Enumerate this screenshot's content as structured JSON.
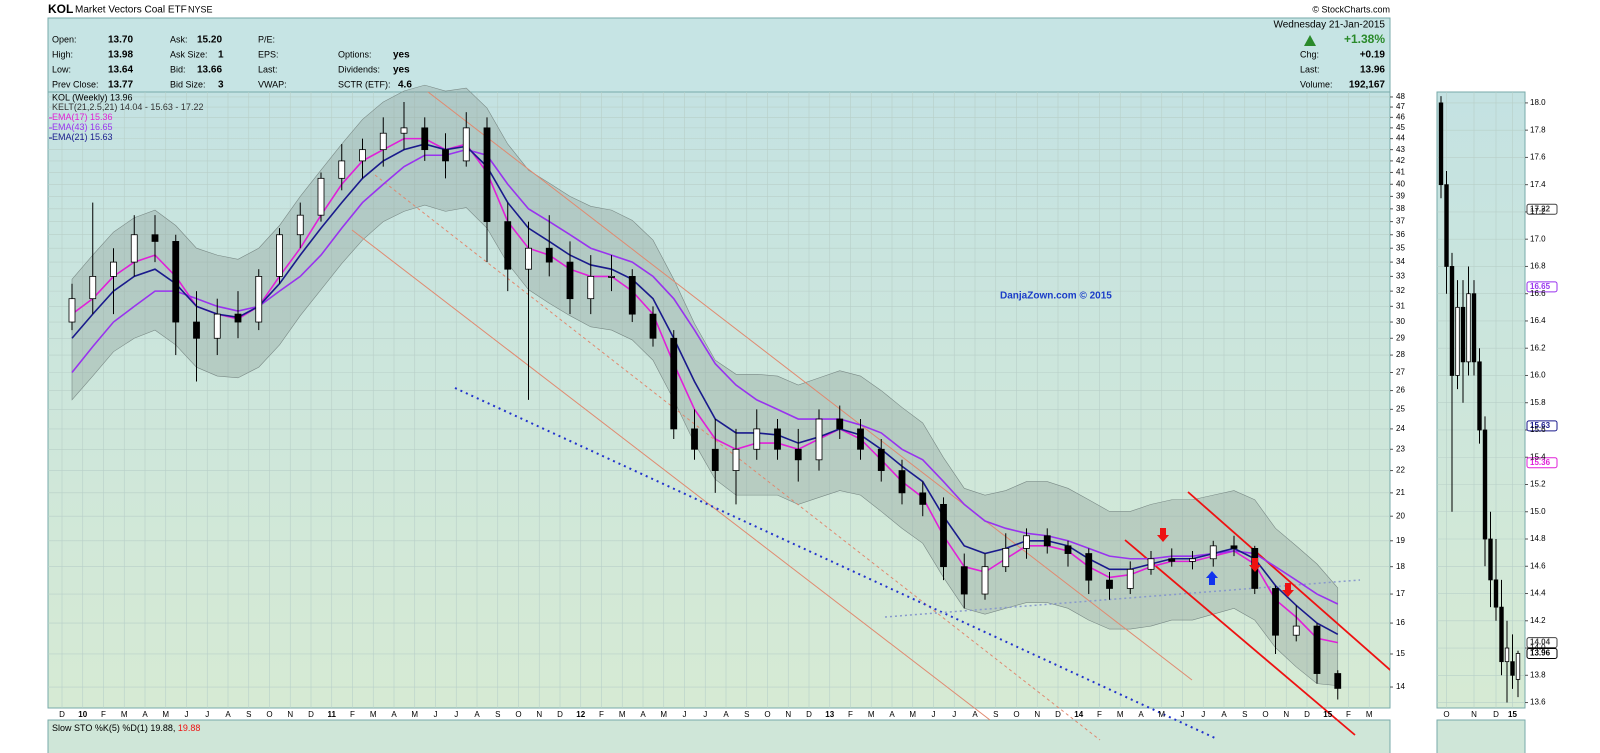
{
  "header": {
    "symbol": "KOL",
    "name": "Market Vectors Coal ETF",
    "exchange": "NYSE",
    "source": "© StockCharts.com",
    "date": "Wednesday  21-Jan-2015",
    "change_pct": "+1.38%"
  },
  "quote": {
    "fields": [
      {
        "label": "Open:",
        "value": "13.70"
      },
      {
        "label": "High:",
        "value": "13.98"
      },
      {
        "label": "Low:",
        "value": "13.64"
      },
      {
        "label": "Prev Close:",
        "value": "13.77"
      },
      {
        "label": "Ask:",
        "value": "15.20"
      },
      {
        "label": "Ask Size:",
        "value": "1"
      },
      {
        "label": "Bid:",
        "value": "13.66"
      },
      {
        "label": "Bid Size:",
        "value": "3"
      },
      {
        "label": "P/E:"
      },
      {
        "label": "EPS:"
      },
      {
        "label": "Last:"
      },
      {
        "label": "VWAP:"
      },
      {
        "label": "Options:",
        "value": "yes"
      },
      {
        "label": "Dividends:",
        "value": "yes"
      },
      {
        "label": "SCTR (ETF):",
        "value": "4.6"
      },
      {
        "label": "Chg:",
        "value": "+0.19"
      },
      {
        "label": "Last:",
        "value": "13.96"
      },
      {
        "label": "Volume:",
        "value": "192,167"
      }
    ]
  },
  "chart_data": [
    {
      "type": "candlestick",
      "price_label": "KOL (Weekly) 13.96",
      "watermark": "DanjaZown.com © 2015",
      "log_scale": true,
      "grid": true,
      "categories": [
        "D",
        "10",
        "F",
        "M",
        "A",
        "M",
        "J",
        "J",
        "A",
        "S",
        "O",
        "N",
        "D",
        "11",
        "F",
        "M",
        "A",
        "M",
        "J",
        "J",
        "A",
        "S",
        "O",
        "N",
        "D",
        "12",
        "F",
        "M",
        "A",
        "M",
        "J",
        "J",
        "A",
        "S",
        "O",
        "N",
        "D",
        "13",
        "F",
        "M",
        "A",
        "M",
        "J",
        "J",
        "A",
        "S",
        "O",
        "N",
        "D",
        "14",
        "F",
        "M",
        "A",
        "M",
        "J",
        "J",
        "A",
        "S",
        "O",
        "N",
        "D",
        "15",
        "F",
        "M"
      ],
      "open": [
        30,
        31.5,
        33,
        34,
        36,
        35.5,
        30,
        29,
        30.5,
        30,
        33,
        36,
        37.5,
        40.5,
        42,
        43,
        44.5,
        45,
        43,
        42,
        45,
        37,
        33.5,
        35,
        34,
        31.5,
        33,
        33,
        30.5,
        29,
        24,
        23,
        22,
        23,
        24,
        23,
        22.5,
        24.5,
        24,
        23,
        22,
        21,
        20.5,
        18,
        17,
        18,
        18.7,
        19.2,
        18.8,
        18.5,
        17.5,
        17.2,
        17.9,
        18.3,
        18.2,
        18.3,
        18.8,
        18.7,
        17.2,
        15.6,
        15.9,
        14.4,
        null,
        null
      ],
      "high": [
        32.5,
        38.5,
        35,
        37.5,
        37.5,
        36,
        32,
        31.5,
        32,
        33.5,
        36.5,
        38.5,
        41,
        43.5,
        44,
        46,
        47.5,
        46,
        44.5,
        46.5,
        46,
        38.5,
        37,
        37.5,
        35.5,
        34.5,
        34.5,
        33.5,
        31,
        29.5,
        25,
        24.5,
        24,
        25,
        24.5,
        24,
        25,
        25.2,
        24.5,
        23.5,
        22.5,
        21.5,
        20.8,
        18.5,
        18.5,
        19.3,
        19.5,
        19.5,
        19,
        18.7,
        17.8,
        18.2,
        18.6,
        18.7,
        18.6,
        19,
        19.2,
        18.8,
        17.3,
        16.6,
        16,
        14.5,
        null,
        null
      ],
      "low": [
        29.5,
        30.5,
        30.5,
        33,
        34,
        28,
        26.5,
        28,
        29,
        29.5,
        32.5,
        35,
        37,
        39.5,
        40.5,
        41.5,
        43,
        42,
        40.5,
        41.5,
        34,
        32,
        25.5,
        33,
        30.5,
        30.5,
        32,
        30,
        28.5,
        23.5,
        22.5,
        21,
        20.5,
        22.5,
        22.5,
        21.5,
        22,
        23.5,
        22.5,
        21.5,
        20.5,
        20,
        17.5,
        16.5,
        16.8,
        17.8,
        18.3,
        18.5,
        18,
        17,
        16.8,
        17,
        17.7,
        18,
        17.9,
        18,
        18.4,
        17,
        15,
        15.4,
        14.1,
        13.64,
        null,
        null
      ],
      "close": [
        31.5,
        33,
        34,
        36,
        35.5,
        30,
        29,
        30.5,
        30,
        33,
        36,
        37.5,
        40.5,
        42,
        43,
        44.5,
        45,
        43,
        42,
        45,
        37,
        33.5,
        35,
        34,
        31.5,
        33,
        33,
        30.5,
        29,
        24,
        23,
        22,
        23,
        24,
        23,
        22.5,
        24.5,
        24,
        23,
        22,
        21,
        20.5,
        18,
        17,
        18,
        18.7,
        19.2,
        18.8,
        18.5,
        17.5,
        17.2,
        17.9,
        18.3,
        18.2,
        18.3,
        18.8,
        18.7,
        17.2,
        15.6,
        15.9,
        14.4,
        13.96,
        null,
        null
      ],
      "band": {
        "name": "KELT(21,2.5,21)",
        "legend_values": "14.04 - 15.63 - 17.22",
        "upper": [
          32.8,
          34.5,
          36.2,
          37.3,
          37.9,
          36.7,
          35,
          34.5,
          34.2,
          35,
          36.7,
          39,
          41.2,
          43.5,
          45.8,
          47.5,
          48.6,
          49.2,
          48.6,
          48.9,
          46.9,
          43.5,
          41.2,
          40.1,
          39,
          38.2,
          37.9,
          37.1,
          35.6,
          32.8,
          29.9,
          27.7,
          26.9,
          26.9,
          26.8,
          26.3,
          26.7,
          27.1,
          26.8,
          26,
          25.1,
          24.3,
          22.6,
          21.2,
          20.9,
          21.1,
          21.5,
          21.5,
          21.2,
          20.7,
          20.2,
          20.2,
          20.5,
          20.7,
          20.7,
          20.9,
          21.1,
          20.7,
          19.5,
          18.8,
          18.1,
          17.22,
          null,
          null
        ],
        "lower": [
          25.5,
          26.8,
          28.2,
          29,
          29.5,
          28.6,
          27.3,
          26.8,
          26.7,
          27.3,
          28.6,
          30.4,
          32.1,
          33.9,
          35.6,
          37,
          37.8,
          38.3,
          37.8,
          38.1,
          36.5,
          33.9,
          32.1,
          31.2,
          30.4,
          29.7,
          29.5,
          28.9,
          27.7,
          25.5,
          23.3,
          21.6,
          20.9,
          20.9,
          20.9,
          20.5,
          20.8,
          21.1,
          20.9,
          20.2,
          19.5,
          18.9,
          17.6,
          16.5,
          16.3,
          16.5,
          16.7,
          16.7,
          16.5,
          16.1,
          15.8,
          15.8,
          15.9,
          16.1,
          16.1,
          16.3,
          16.5,
          16.1,
          15.2,
          14.6,
          14.1,
          14.04,
          null,
          null
        ]
      },
      "series": [
        {
          "name": "EMA(17)",
          "last": 15.36,
          "color": "#e020d8",
          "values": [
            30.5,
            31.5,
            33,
            34,
            34.5,
            33,
            31,
            30.5,
            30.2,
            31,
            33,
            35,
            37.5,
            40,
            42,
            43,
            44,
            44,
            43,
            43.5,
            41,
            37,
            35,
            34.5,
            33.5,
            33,
            33,
            32,
            30.5,
            27.5,
            25,
            23.5,
            23,
            23.3,
            23.3,
            23,
            23.5,
            24,
            23.5,
            22.5,
            21.5,
            20.8,
            19.2,
            18,
            17.8,
            18.3,
            18.8,
            18.8,
            18.6,
            18,
            17.6,
            17.7,
            18,
            18.2,
            18.2,
            18.4,
            18.6,
            18.1,
            16.8,
            16.2,
            15.5,
            15.36,
            null,
            null
          ]
        },
        {
          "name": "EMA(43)",
          "last": 16.65,
          "color": "#9933ee",
          "values": [
            27,
            28.5,
            30,
            31,
            32,
            32,
            31.5,
            31,
            30.7,
            31,
            32,
            33,
            34.5,
            36.5,
            38.5,
            40,
            41.5,
            42.5,
            42.5,
            43,
            42.5,
            40,
            38,
            37,
            36,
            35,
            34.5,
            34,
            33,
            31.5,
            29.5,
            27.5,
            26.3,
            25.5,
            25,
            24.5,
            24.5,
            24.5,
            24.2,
            23.8,
            23,
            22.5,
            21.5,
            20.5,
            19.8,
            19.5,
            19.3,
            19.2,
            19,
            18.7,
            18.4,
            18.3,
            18.3,
            18.4,
            18.4,
            18.5,
            18.6,
            18.5,
            18,
            17.5,
            17,
            16.65,
            null,
            null
          ]
        },
        {
          "name": "EMA(21)",
          "last": 15.63,
          "color": "#1a1a8c",
          "values": [
            29,
            30.5,
            32,
            33,
            33.5,
            32.5,
            31,
            30.5,
            30.3,
            31,
            32.5,
            34.5,
            36.5,
            38.5,
            40.5,
            42,
            43,
            43.5,
            43,
            43.3,
            41.5,
            38.5,
            36.5,
            35.5,
            34.5,
            33.8,
            33.5,
            32.8,
            31.5,
            29,
            26.5,
            24.5,
            23.8,
            23.8,
            23.7,
            23.3,
            23.6,
            24,
            23.7,
            23,
            22.2,
            21.5,
            20,
            18.8,
            18.5,
            18.7,
            19,
            19,
            18.8,
            18.3,
            17.9,
            17.9,
            18.1,
            18.3,
            18.3,
            18.5,
            18.7,
            18.3,
            17.3,
            16.6,
            16,
            15.63,
            null,
            null
          ]
        }
      ],
      "ylim": [
        13.4,
        48.5
      ],
      "yticks": [
        14,
        15,
        16,
        17,
        18,
        19,
        20,
        21,
        22,
        23,
        24,
        25,
        26,
        27,
        28,
        29,
        30,
        31,
        32,
        33,
        34,
        35,
        36,
        37,
        38,
        39,
        40,
        41,
        42,
        43,
        44,
        45,
        46,
        47,
        48
      ]
    },
    {
      "type": "candlestick",
      "grid": true,
      "categories": [
        null,
        "O",
        null,
        null,
        null,
        null,
        "N",
        null,
        null,
        null,
        "D",
        null,
        null,
        "15",
        null
      ],
      "open": [
        18.0,
        17.4,
        16.8,
        16.0,
        16.5,
        16.1,
        16.6,
        16.1,
        15.6,
        14.8,
        14.5,
        14.3,
        13.9,
        13.9,
        13.77
      ],
      "high": [
        18.05,
        17.5,
        16.9,
        16.7,
        16.7,
        16.8,
        16.7,
        16.2,
        15.7,
        15.0,
        14.8,
        14.5,
        14.2,
        14.1,
        13.98
      ],
      "low": [
        17.3,
        16.6,
        15.0,
        15.9,
        15.8,
        16.0,
        16.0,
        15.5,
        14.6,
        14.3,
        14.2,
        13.8,
        13.6,
        13.7,
        13.64
      ],
      "close": [
        17.4,
        16.8,
        16.0,
        16.5,
        16.1,
        16.6,
        16.1,
        15.6,
        14.8,
        14.5,
        14.3,
        13.9,
        14.0,
        13.8,
        13.96
      ],
      "tags": [
        17.22,
        16.65,
        15.63,
        15.36,
        14.04,
        13.96
      ],
      "tag_colors": [
        "#444444",
        "#9933ee",
        "#1a1a8c",
        "#e020d8",
        "#444444",
        "#000000"
      ],
      "ylim": [
        13.56,
        18.08
      ],
      "yticks": [
        13.6,
        13.8,
        {
          "value": 14,
          "label": "14.0"
        },
        14.2,
        14.4,
        14.6,
        14.8,
        {
          "value": 15,
          "label": "15.0"
        },
        15.2,
        15.4,
        15.6,
        15.8,
        {
          "value": 16,
          "label": "16.0"
        },
        16.2,
        16.4,
        16.6,
        16.8,
        {
          "value": 17,
          "label": "17.0"
        },
        17.2,
        17.4,
        17.6,
        17.8,
        {
          "value": 18,
          "label": "18.0"
        }
      ]
    }
  ],
  "indicator": {
    "label": "Slow STO %K(5) %D(1) 19.88,",
    "value": "19.88"
  }
}
